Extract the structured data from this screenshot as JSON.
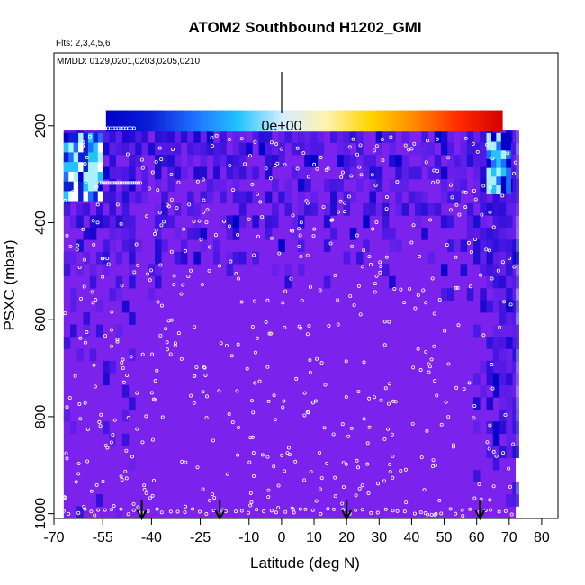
{
  "chart_data": {
    "type": "heatmap",
    "title": "ATOM2 Southbound H1202_GMI",
    "flights_note": "Flts: 2,3,4,5,6",
    "dates_note": "MMDD: 0129,0201,0203,0205,0210",
    "xlabel": "Latitude (deg N)",
    "ylabel": "PSXC (mbar)",
    "xlim": [
      -70,
      85
    ],
    "ylim": [
      1010,
      50
    ],
    "y_reversed": true,
    "x_ticks": [
      -70,
      -55,
      -40,
      -25,
      -10,
      0,
      10,
      20,
      30,
      40,
      50,
      60,
      70,
      80
    ],
    "y_ticks": [
      200,
      400,
      600,
      800,
      1000
    ],
    "scale_marker_label": "0e+00",
    "scale_marker_lat": 0,
    "flight_arrow_lats": [
      -43,
      -19,
      20,
      61
    ],
    "colorbar_lat_range": [
      -54,
      68
    ],
    "data_lat_range": [
      -67,
      72
    ],
    "data_pres_range": [
      210,
      1010
    ],
    "colormap": [
      "#7b22ec",
      "#3a14e0",
      "#0000c8",
      "#0a1fd8",
      "#1f6fff",
      "#22c3ff",
      "#d6ecff",
      "#fff2b0",
      "#ffd400",
      "#ff8a00",
      "#ff2a00",
      "#d40000"
    ],
    "background_color": "#7b22ec",
    "grid": false
  }
}
